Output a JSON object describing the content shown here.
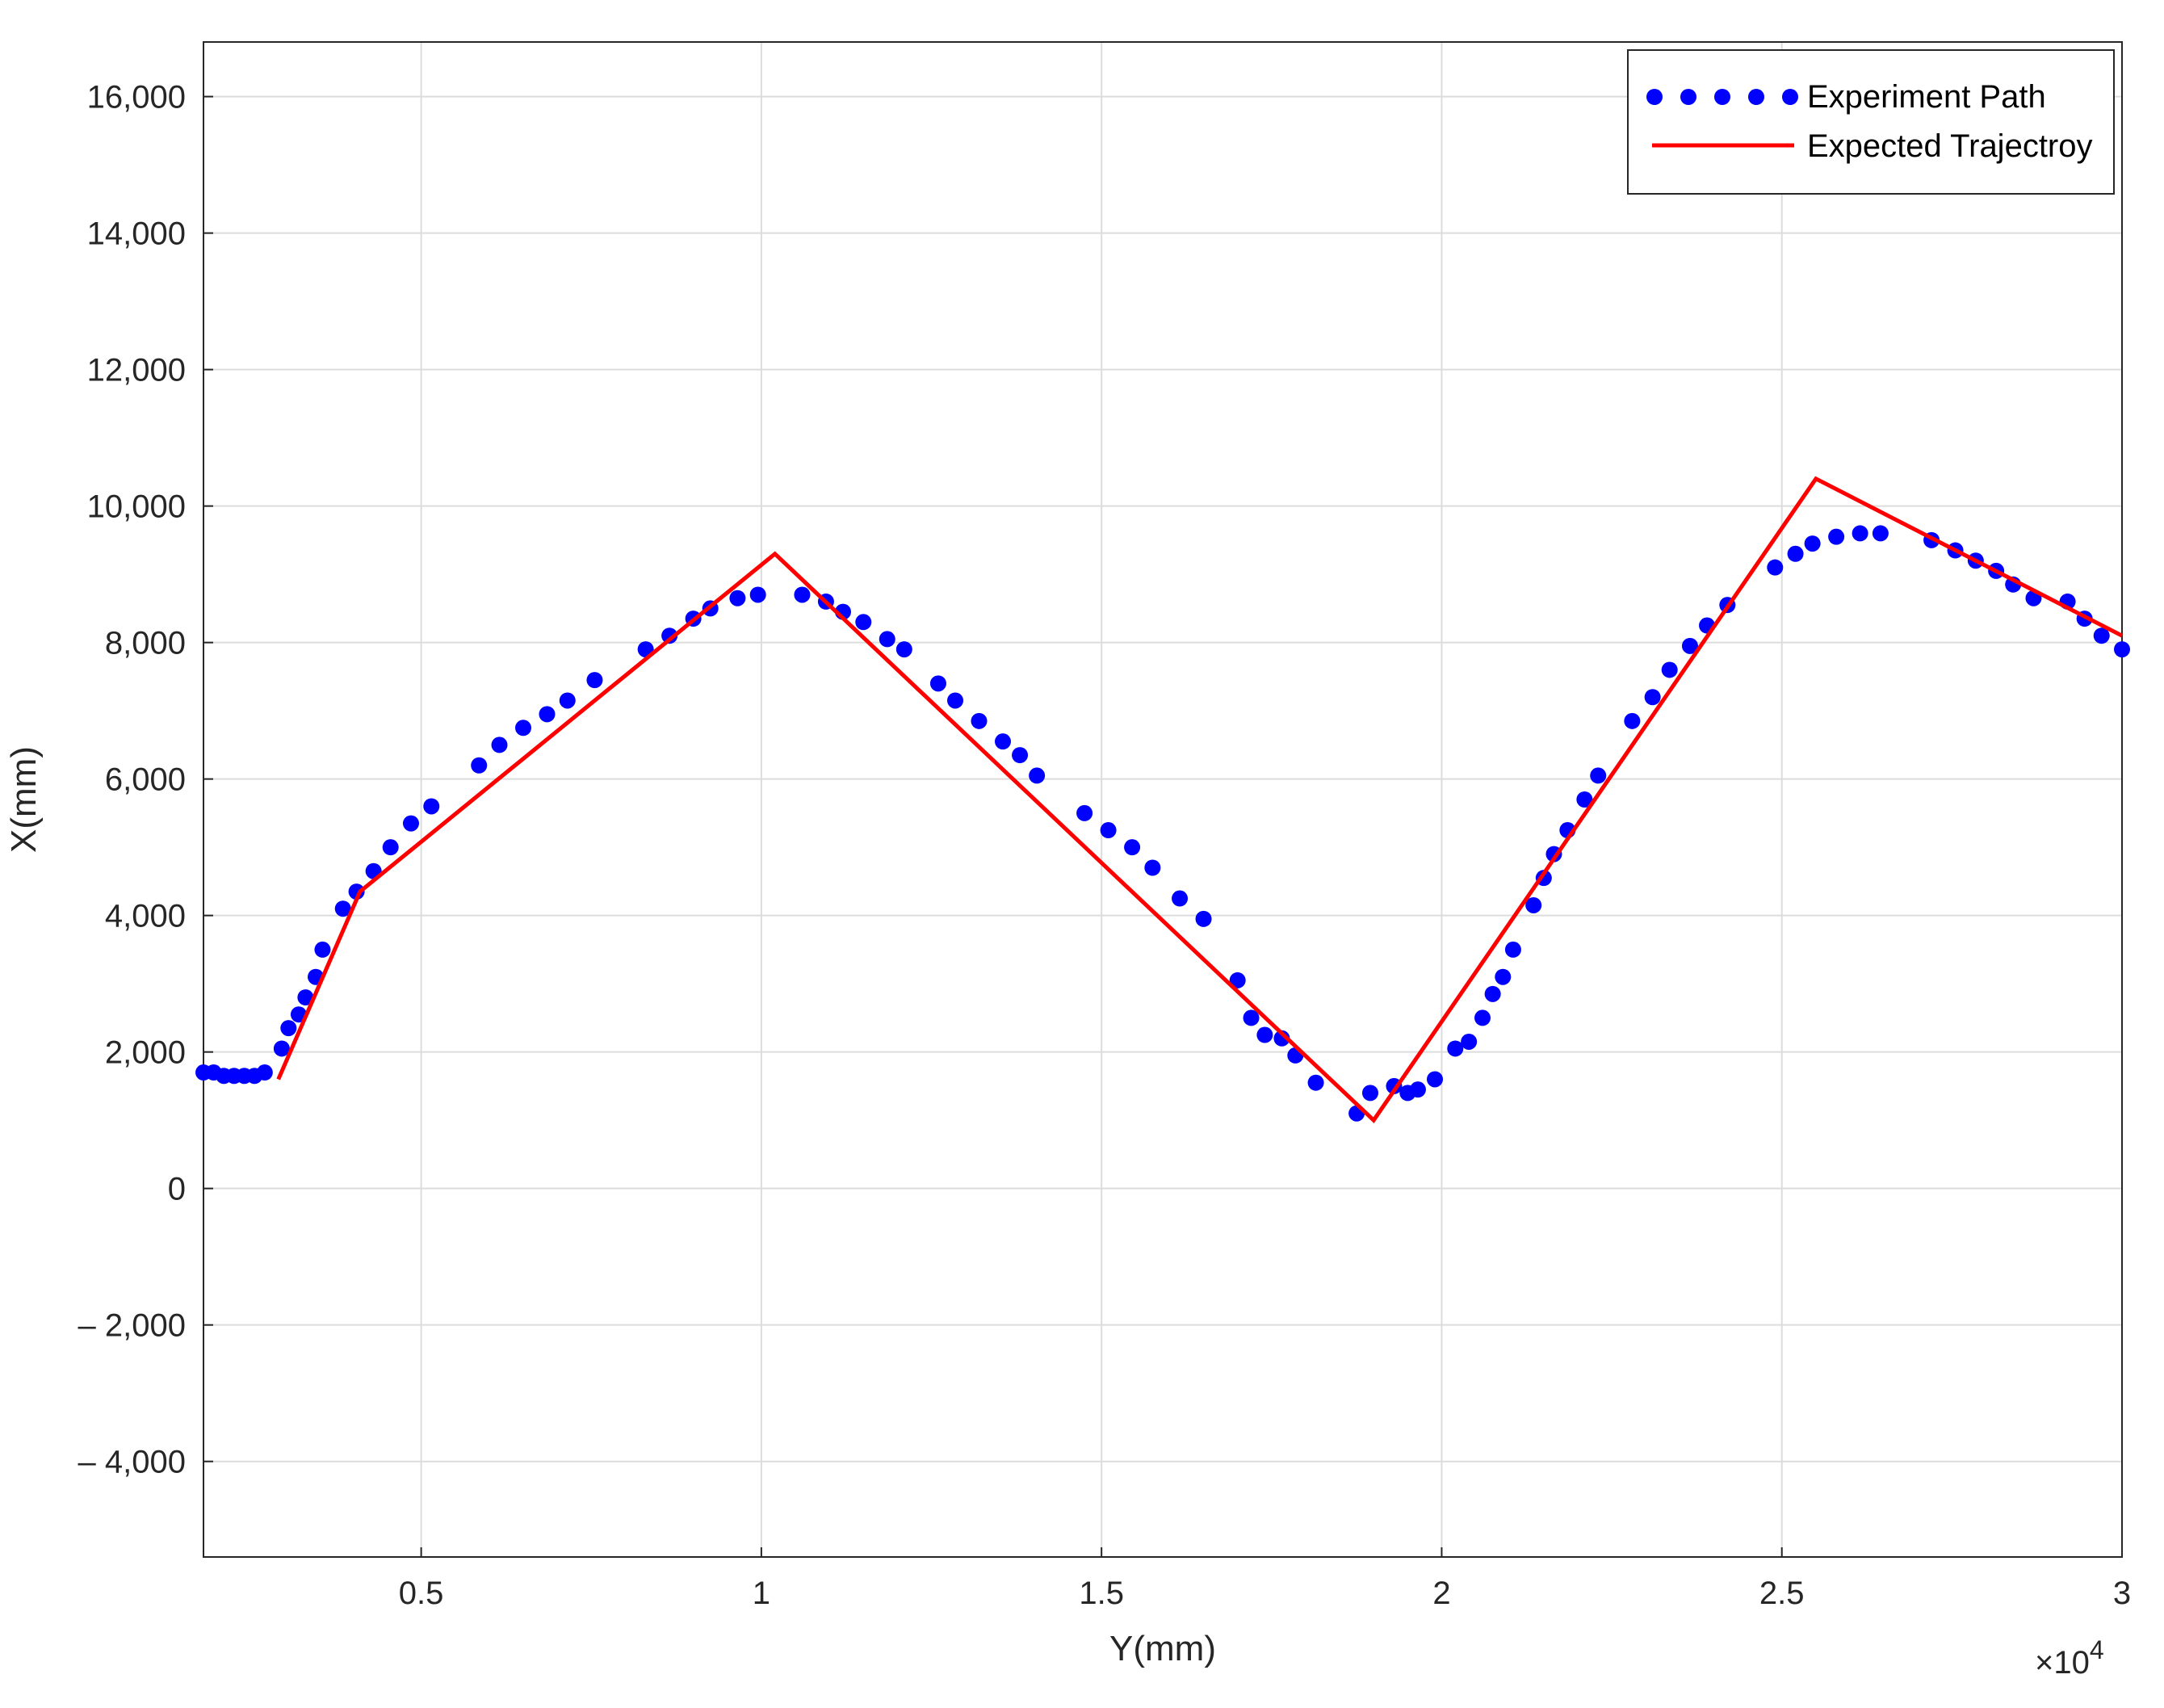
{
  "chart_data": {
    "type": "line",
    "xlabel": "Y(mm)",
    "ylabel": "X(mm)",
    "x_exponent_label": "×10",
    "x_exponent_power": "4",
    "xlim": [
      1800,
      30000
    ],
    "ylim": [
      -5400,
      16800
    ],
    "grid": true,
    "legend_placement": "top-right",
    "x_ticks": [
      {
        "value": 5000,
        "label": "0.5"
      },
      {
        "value": 10000,
        "label": "1"
      },
      {
        "value": 15000,
        "label": "1.5"
      },
      {
        "value": 20000,
        "label": "2"
      },
      {
        "value": 25000,
        "label": "2.5"
      },
      {
        "value": 30000,
        "label": "3"
      }
    ],
    "y_ticks": [
      {
        "value": 16000,
        "label": "16,000"
      },
      {
        "value": 14000,
        "label": "14,000"
      },
      {
        "value": 12000,
        "label": "12,000"
      },
      {
        "value": 10000,
        "label": "10,000"
      },
      {
        "value": 8000,
        "label": "8,000"
      },
      {
        "value": 6000,
        "label": "6,000"
      },
      {
        "value": 4000,
        "label": "4,000"
      },
      {
        "value": 2000,
        "label": "2,000"
      },
      {
        "value": 0,
        "label": "0"
      },
      {
        "value": -2000,
        "label": "– 2,000"
      },
      {
        "value": -4000,
        "label": "– 4,000"
      }
    ],
    "series": [
      {
        "name": "Experiment Path",
        "style": "dotted-markers",
        "color": "#0000ff",
        "points": [
          [
            1800,
            1700
          ],
          [
            1950,
            1700
          ],
          [
            2100,
            1650
          ],
          [
            2250,
            1650
          ],
          [
            2400,
            1650
          ],
          [
            2550,
            1650
          ],
          [
            2700,
            1700
          ],
          [
            2950,
            2050
          ],
          [
            3050,
            2350
          ],
          [
            3200,
            2550
          ],
          [
            3300,
            2800
          ],
          [
            3450,
            3100
          ],
          [
            3550,
            3500
          ],
          [
            3850,
            4100
          ],
          [
            4050,
            4350
          ],
          [
            4300,
            4650
          ],
          [
            4550,
            5000
          ],
          [
            4850,
            5350
          ],
          [
            5150,
            5600
          ],
          [
            5850,
            6200
          ],
          [
            6150,
            6500
          ],
          [
            6500,
            6750
          ],
          [
            6850,
            6950
          ],
          [
            7150,
            7150
          ],
          [
            7550,
            7450
          ],
          [
            8300,
            7900
          ],
          [
            8650,
            8100
          ],
          [
            9000,
            8350
          ],
          [
            9250,
            8500
          ],
          [
            9650,
            8650
          ],
          [
            9950,
            8700
          ],
          [
            10600,
            8700
          ],
          [
            10950,
            8600
          ],
          [
            11200,
            8450
          ],
          [
            11500,
            8300
          ],
          [
            11850,
            8050
          ],
          [
            12100,
            7900
          ],
          [
            12600,
            7400
          ],
          [
            12850,
            7150
          ],
          [
            13200,
            6850
          ],
          [
            13550,
            6550
          ],
          [
            13800,
            6350
          ],
          [
            14050,
            6050
          ],
          [
            14750,
            5500
          ],
          [
            15100,
            5250
          ],
          [
            15450,
            5000
          ],
          [
            15750,
            4700
          ],
          [
            16150,
            4250
          ],
          [
            16500,
            3950
          ],
          [
            17000,
            3050
          ],
          [
            17200,
            2500
          ],
          [
            17400,
            2250
          ],
          [
            17650,
            2200
          ],
          [
            17850,
            1950
          ],
          [
            18150,
            1550
          ],
          [
            18750,
            1100
          ],
          [
            18950,
            1400
          ],
          [
            19300,
            1500
          ],
          [
            19500,
            1400
          ],
          [
            19650,
            1450
          ],
          [
            19900,
            1600
          ],
          [
            20200,
            2050
          ],
          [
            20400,
            2150
          ],
          [
            20600,
            2500
          ],
          [
            20750,
            2850
          ],
          [
            20900,
            3100
          ],
          [
            21050,
            3500
          ],
          [
            21350,
            4150
          ],
          [
            21500,
            4550
          ],
          [
            21650,
            4900
          ],
          [
            21850,
            5250
          ],
          [
            22100,
            5700
          ],
          [
            22300,
            6050
          ],
          [
            22800,
            6850
          ],
          [
            23100,
            7200
          ],
          [
            23350,
            7600
          ],
          [
            23650,
            7950
          ],
          [
            23900,
            8250
          ],
          [
            24200,
            8550
          ],
          [
            24900,
            9100
          ],
          [
            25200,
            9300
          ],
          [
            25450,
            9450
          ],
          [
            25800,
            9550
          ],
          [
            26150,
            9600
          ],
          [
            26450,
            9600
          ],
          [
            27200,
            9500
          ],
          [
            27550,
            9350
          ],
          [
            27850,
            9200
          ],
          [
            28150,
            9050
          ],
          [
            28400,
            8850
          ],
          [
            28700,
            8650
          ],
          [
            29200,
            8600
          ],
          [
            29450,
            8350
          ],
          [
            29700,
            8100
          ],
          [
            30000,
            7900
          ]
        ]
      },
      {
        "name": "Expected Trajectroy",
        "style": "solid-line",
        "color": "#ff0000",
        "points": [
          [
            2900,
            1600
          ],
          [
            4100,
            4350
          ],
          [
            10200,
            9300
          ],
          [
            19000,
            1000
          ],
          [
            25500,
            10400
          ],
          [
            30000,
            8100
          ]
        ]
      }
    ]
  }
}
